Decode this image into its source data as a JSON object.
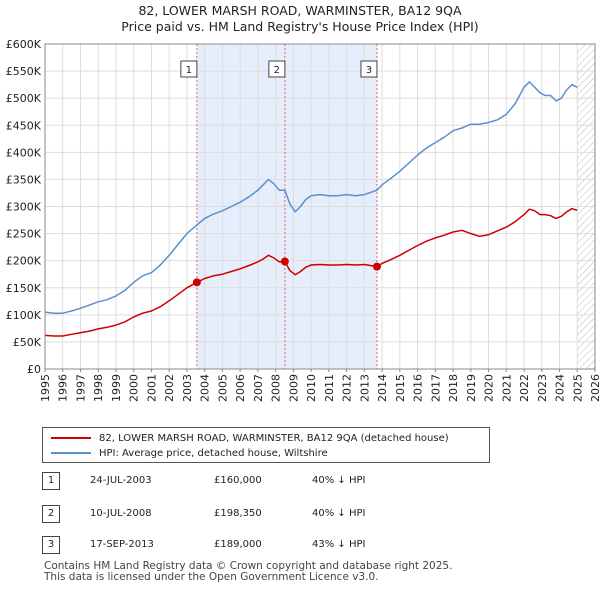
{
  "title_line1": "82, LOWER MARSH ROAD, WARMINSTER, BA12 9QA",
  "title_line2": "Price paid vs. HM Land Registry's House Price Index (HPI)",
  "legend": [
    {
      "label": "82, LOWER MARSH ROAD, WARMINSTER, BA12 9QA (detached house)",
      "color": "#cc0000"
    },
    {
      "label": "HPI: Average price, detached house, Wiltshire",
      "color": "#5b8fd0"
    }
  ],
  "sales": [
    {
      "num": "1",
      "date": "24-JUL-2003",
      "price": "£160,000",
      "diff": "40% ↓ HPI"
    },
    {
      "num": "2",
      "date": "10-JUL-2008",
      "price": "£198,350",
      "diff": "40% ↓ HPI"
    },
    {
      "num": "3",
      "date": "17-SEP-2013",
      "price": "£189,000",
      "diff": "43% ↓ HPI"
    }
  ],
  "footer_line1": "Contains HM Land Registry data © Crown copyright and database right 2025.",
  "footer_line2": "This data is licensed under the Open Government Licence v3.0.",
  "chart_data": {
    "type": "line",
    "title": "Price paid vs. HM Land Registry's House Price Index (HPI)",
    "xlabel": "",
    "ylabel": "",
    "xlim": [
      1995,
      2026
    ],
    "ylim": [
      0,
      600000
    ],
    "x_ticks": [
      1995,
      1996,
      1997,
      1998,
      1999,
      2000,
      2001,
      2002,
      2003,
      2004,
      2005,
      2006,
      2007,
      2008,
      2009,
      2010,
      2011,
      2012,
      2013,
      2014,
      2015,
      2016,
      2017,
      2018,
      2019,
      2020,
      2021,
      2022,
      2023,
      2024,
      2025,
      2026
    ],
    "y_ticks": [
      0,
      50000,
      100000,
      150000,
      200000,
      250000,
      300000,
      350000,
      400000,
      450000,
      500000,
      550000,
      600000
    ],
    "y_tick_labels": [
      "£0",
      "£50K",
      "£100K",
      "£150K",
      "£200K",
      "£250K",
      "£300K",
      "£350K",
      "£400K",
      "£450K",
      "£500K",
      "£550K",
      "£600K"
    ],
    "colors": {
      "property": "#cc0000",
      "hpi": "#5b8fd0",
      "shade": "#e6eefb",
      "sale_line": "#e06666",
      "hatch": "#bbbbbb"
    },
    "series": [
      {
        "name": "HPI: Average price, detached house, Wiltshire",
        "color": "#5b8fd0",
        "x": [
          1995.0,
          1995.5,
          1996.0,
          1996.5,
          1997.0,
          1997.5,
          1998.0,
          1998.5,
          1999.0,
          1999.5,
          2000.0,
          2000.5,
          2001.0,
          2001.5,
          2002.0,
          2002.5,
          2003.0,
          2003.56,
          2004.0,
          2004.5,
          2005.0,
          2005.5,
          2006.0,
          2006.5,
          2007.0,
          2007.3,
          2007.6,
          2007.9,
          2008.2,
          2008.52,
          2008.8,
          2009.1,
          2009.4,
          2009.7,
          2010.0,
          2010.5,
          2011.0,
          2011.5,
          2012.0,
          2012.5,
          2013.0,
          2013.71,
          2014.0,
          2014.5,
          2015.0,
          2015.5,
          2016.0,
          2016.5,
          2017.0,
          2017.5,
          2018.0,
          2018.5,
          2019.0,
          2019.5,
          2020.0,
          2020.5,
          2021.0,
          2021.5,
          2022.0,
          2022.3,
          2022.6,
          2022.9,
          2023.2,
          2023.5,
          2023.8,
          2024.1,
          2024.4,
          2024.7,
          2025.0
        ],
        "y": [
          105000,
          103000,
          103000,
          107000,
          112000,
          118000,
          124000,
          128000,
          135000,
          145000,
          160000,
          172000,
          178000,
          192000,
          210000,
          230000,
          250000,
          266000,
          278000,
          286000,
          292000,
          300000,
          308000,
          318000,
          330000,
          340000,
          350000,
          342000,
          330000,
          330000,
          305000,
          290000,
          300000,
          313000,
          320000,
          322000,
          320000,
          320000,
          322000,
          320000,
          322000,
          330000,
          340000,
          352000,
          365000,
          380000,
          395000,
          408000,
          418000,
          428000,
          440000,
          445000,
          452000,
          452000,
          455000,
          460000,
          470000,
          490000,
          520000,
          530000,
          520000,
          510000,
          505000,
          505000,
          495000,
          500000,
          515000,
          525000,
          520000
        ]
      },
      {
        "name": "82, LOWER MARSH ROAD, WARMINSTER, BA12 9QA (detached house)",
        "color": "#cc0000",
        "x": [
          1995.0,
          1995.5,
          1996.0,
          1996.5,
          1997.0,
          1997.5,
          1998.0,
          1998.5,
          1999.0,
          1999.5,
          2000.0,
          2000.5,
          2001.0,
          2001.5,
          2002.0,
          2002.5,
          2003.0,
          2003.56,
          2004.0,
          2004.5,
          2005.0,
          2005.5,
          2006.0,
          2006.5,
          2007.0,
          2007.3,
          2007.6,
          2007.9,
          2008.2,
          2008.52,
          2008.8,
          2009.1,
          2009.4,
          2009.7,
          2010.0,
          2010.5,
          2011.0,
          2011.5,
          2012.0,
          2012.5,
          2013.0,
          2013.71,
          2014.0,
          2014.5,
          2015.0,
          2015.5,
          2016.0,
          2016.5,
          2017.0,
          2017.5,
          2018.0,
          2018.5,
          2019.0,
          2019.5,
          2020.0,
          2020.5,
          2021.0,
          2021.5,
          2022.0,
          2022.3,
          2022.6,
          2022.9,
          2023.2,
          2023.5,
          2023.8,
          2024.1,
          2024.4,
          2024.7,
          2025.0
        ],
        "y": [
          62000,
          61000,
          61000,
          64000,
          67000,
          70000,
          74000,
          77000,
          81000,
          87000,
          96000,
          103000,
          107000,
          115000,
          126000,
          138000,
          150000,
          160000,
          167000,
          172000,
          175000,
          180000,
          185000,
          191000,
          198000,
          203000,
          210000,
          205000,
          198000,
          198350,
          182000,
          174000,
          180000,
          188000,
          192000,
          193000,
          192000,
          192000,
          193000,
          192000,
          193000,
          189000,
          195000,
          202000,
          210000,
          219000,
          228000,
          236000,
          242000,
          247000,
          253000,
          256000,
          250000,
          245000,
          248000,
          255000,
          262000,
          272000,
          285000,
          295000,
          292000,
          285000,
          285000,
          283000,
          278000,
          282000,
          290000,
          296000,
          293000
        ]
      }
    ],
    "sales_markers": [
      {
        "label": "1",
        "x": 2003.56,
        "y": 160000
      },
      {
        "label": "2",
        "x": 2008.52,
        "y": 198350
      },
      {
        "label": "3",
        "x": 2013.71,
        "y": 189000
      }
    ],
    "forecast_start": 2025.0
  }
}
